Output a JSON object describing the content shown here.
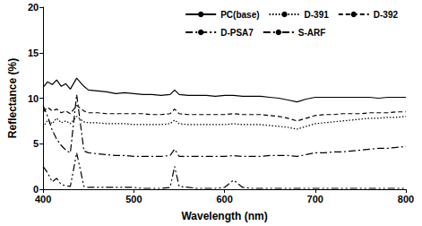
{
  "chart_data": {
    "type": "line",
    "x_label": "Wavelength (nm)",
    "y_label": "Reflectance (%)",
    "x": [
      400,
      405,
      410,
      415,
      420,
      425,
      430,
      437,
      445,
      450,
      460,
      470,
      480,
      490,
      500,
      510,
      520,
      530,
      540,
      545,
      550,
      560,
      570,
      580,
      590,
      600,
      610,
      620,
      630,
      640,
      650,
      660,
      670,
      680,
      690,
      700,
      710,
      720,
      730,
      740,
      750,
      760,
      770,
      780,
      790,
      800
    ],
    "series": [
      {
        "name": "PC(base)",
        "color": "#000000",
        "line_style": "solid",
        "values": [
          11.2,
          11.8,
          11.5,
          12.0,
          11.3,
          11.6,
          11.0,
          12.2,
          11.3,
          10.9,
          10.8,
          10.7,
          10.5,
          10.6,
          10.5,
          10.4,
          10.4,
          10.3,
          10.4,
          10.9,
          10.4,
          10.3,
          10.3,
          10.3,
          10.2,
          10.3,
          10.3,
          10.2,
          10.2,
          10.2,
          10.1,
          10.0,
          9.8,
          9.6,
          9.9,
          10.1,
          10.1,
          10.1,
          10.1,
          10.1,
          10.1,
          10.1,
          10.0,
          10.1,
          10.1,
          10.1
        ]
      },
      {
        "name": "D-391",
        "color": "#000000",
        "line_style": "dotted",
        "values": [
          6.8,
          7.6,
          7.2,
          7.8,
          7.3,
          7.5,
          7.2,
          8.0,
          7.4,
          7.3,
          7.3,
          7.2,
          7.2,
          7.2,
          7.1,
          7.1,
          7.1,
          7.1,
          7.2,
          7.6,
          7.2,
          7.1,
          7.1,
          7.1,
          7.1,
          7.1,
          7.2,
          7.1,
          7.1,
          7.1,
          7.0,
          6.9,
          6.8,
          6.6,
          6.9,
          7.2,
          7.3,
          7.4,
          7.5,
          7.6,
          7.7,
          7.8,
          7.8,
          7.9,
          7.9,
          8.0
        ]
      },
      {
        "name": "D-392",
        "color": "#000000",
        "line_style": "dashed",
        "values": [
          8.5,
          9.0,
          8.6,
          8.8,
          8.4,
          8.6,
          8.3,
          9.2,
          8.6,
          8.4,
          8.4,
          8.3,
          8.3,
          8.3,
          8.3,
          8.3,
          8.2,
          8.2,
          8.3,
          8.8,
          8.3,
          8.2,
          8.2,
          8.2,
          8.2,
          8.2,
          8.3,
          8.2,
          8.2,
          8.2,
          8.1,
          8.0,
          7.8,
          7.5,
          7.8,
          8.1,
          8.2,
          8.2,
          8.3,
          8.3,
          8.3,
          8.4,
          8.4,
          8.4,
          8.5,
          8.5
        ]
      },
      {
        "name": "D-PSA7",
        "color": "#000000",
        "line_style": "dashdot",
        "values": [
          9.2,
          8.0,
          6.5,
          5.5,
          4.8,
          4.3,
          4.0,
          10.4,
          4.2,
          4.0,
          3.9,
          3.8,
          3.7,
          3.7,
          3.6,
          3.6,
          3.6,
          3.6,
          3.7,
          4.4,
          3.6,
          3.6,
          3.6,
          3.6,
          3.6,
          3.6,
          3.7,
          3.6,
          3.6,
          3.6,
          3.7,
          3.7,
          3.7,
          3.6,
          3.8,
          4.0,
          4.0,
          4.1,
          4.1,
          4.2,
          4.3,
          4.4,
          4.5,
          4.5,
          4.6,
          4.7
        ]
      },
      {
        "name": "S-ARF",
        "color": "#000000",
        "line_style": "dashdotdot",
        "values": [
          2.5,
          1.8,
          0.8,
          1.2,
          0.5,
          0.4,
          0.3,
          4.0,
          0.3,
          0.2,
          0.2,
          0.2,
          0.2,
          0.2,
          0.2,
          0.1,
          0.1,
          0.1,
          0.2,
          2.5,
          0.3,
          0.2,
          0.1,
          0.1,
          0.1,
          0.2,
          1.0,
          0.2,
          0.1,
          0.1,
          0.1,
          0.1,
          0.1,
          0.1,
          0.1,
          0.1,
          0.1,
          0.1,
          0.1,
          0.1,
          0.1,
          0.1,
          0.1,
          0.1,
          0.1,
          0.1
        ]
      }
    ],
    "xlim": [
      400,
      800
    ],
    "xticks": [
      400,
      500,
      600,
      700,
      800
    ],
    "ylim": [
      0,
      20
    ],
    "yticks": [
      0,
      5,
      10,
      15,
      20
    ],
    "grid": false,
    "legend": "upper right"
  }
}
